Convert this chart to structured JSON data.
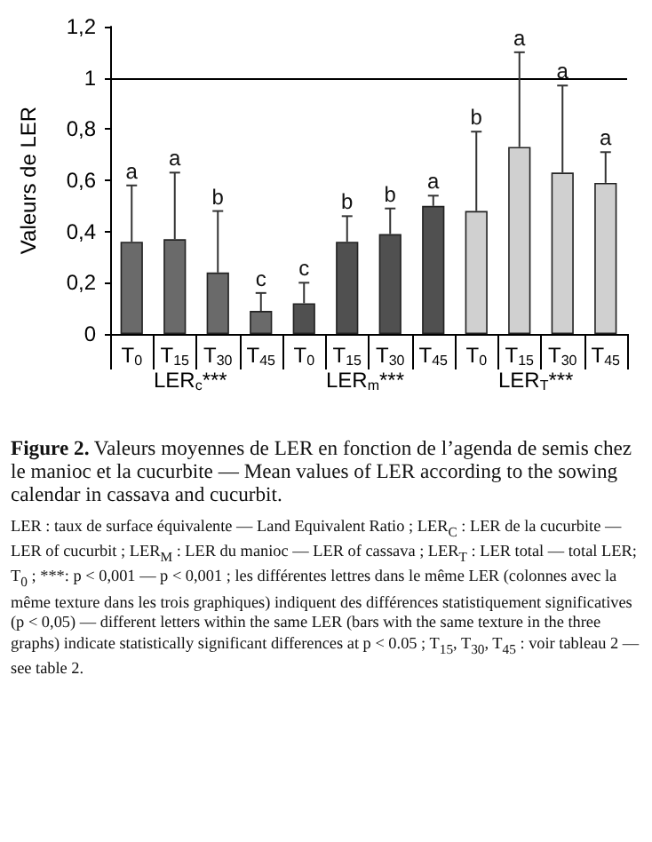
{
  "chart_data": {
    "type": "bar",
    "ylabel": "Valeurs de LER",
    "categories": [
      "T$_{0}$",
      "T$_{15}$",
      "T$_{30}$",
      "T$_{45}$",
      "T$_{0}$",
      "T$_{15}$",
      "T$_{30}$",
      "T$_{45}$",
      "T$_{0}$",
      "T$_{15}$",
      "T$_{30}$",
      "T$_{45}$"
    ],
    "values": [
      0.36,
      0.37,
      0.24,
      0.09,
      0.12,
      0.36,
      0.39,
      0.5,
      0.48,
      0.73,
      0.63,
      0.59
    ],
    "colors": [
      "#6a6a6a",
      "#6a6a6a",
      "#6a6a6a",
      "#6a6a6a",
      "#505050",
      "#505050",
      "#505050",
      "#505050",
      "#d0d0d0",
      "#d0d0d0",
      "#d0d0d0",
      "#d0d0d0"
    ],
    "errors": [
      [
        0.36,
        0.58
      ],
      [
        0.37,
        0.63
      ],
      [
        0.24,
        0.48
      ],
      [
        0.09,
        0.16
      ],
      [
        0.12,
        0.2
      ],
      [
        0.36,
        0.46
      ],
      [
        0.39,
        0.49
      ],
      [
        0.5,
        0.54
      ],
      [
        0.48,
        0.79
      ],
      [
        0.73,
        1.1
      ],
      [
        0.63,
        0.97
      ],
      [
        0.59,
        0.71
      ]
    ],
    "ylim": [
      0,
      1.2
    ],
    "yticks": [
      0,
      {
        "value": 0.2,
        "label": "0,2"
      },
      {
        "value": 0.4,
        "label": "0,4"
      },
      {
        "value": 0.6,
        "label": "0,6"
      },
      {
        "value": 0.8,
        "label": "0,8"
      },
      1,
      {
        "value": 1.2,
        "label": "1,2"
      }
    ],
    "ref_lines": [
      {
        "axis": "y",
        "value": 1,
        "label": null,
        "color": "#000000"
      }
    ],
    "grid": false,
    "annotations": [
      "LER$_{c}$***",
      "LER$_{m}$***",
      "LER$_{T}$***",
      "a",
      "a",
      "b",
      "c",
      "c",
      "b",
      "b",
      "a",
      "b",
      "a",
      "a",
      "a",
      "Figure 2. Valeurs moyennes de LER en fonction de l’agenda de semis chez le manioc et la cucurbite — Mean values of LER according to the sowing calendar in cassava and cucurbit.",
      "LER : taux de surface équivalente — Land Equivalent Ratio ; LER$_{C}$ : LER de la cucurbite — LER of cucurbit ; LER$_{M}$ : LER du manioc — LER of cassava ; LER$_{T}$ : LER total — total LER; T$_{0}$ ; ***: p < 0,001 — p < 0,001 ; les différentes lettres dans le même LER (colonnes avec la même texture dans les trois graphiques) indiquent des différences statistiquement significatives (p < 0,05) — different letters within the same LER (bars with the same texture in the three graphs) indicate statistically significant differences at p < 0.05 ; T$_{15}$, T$_{30}$, T$_{45}$ : voir tableau 2 — see table 2."
    ]
  }
}
